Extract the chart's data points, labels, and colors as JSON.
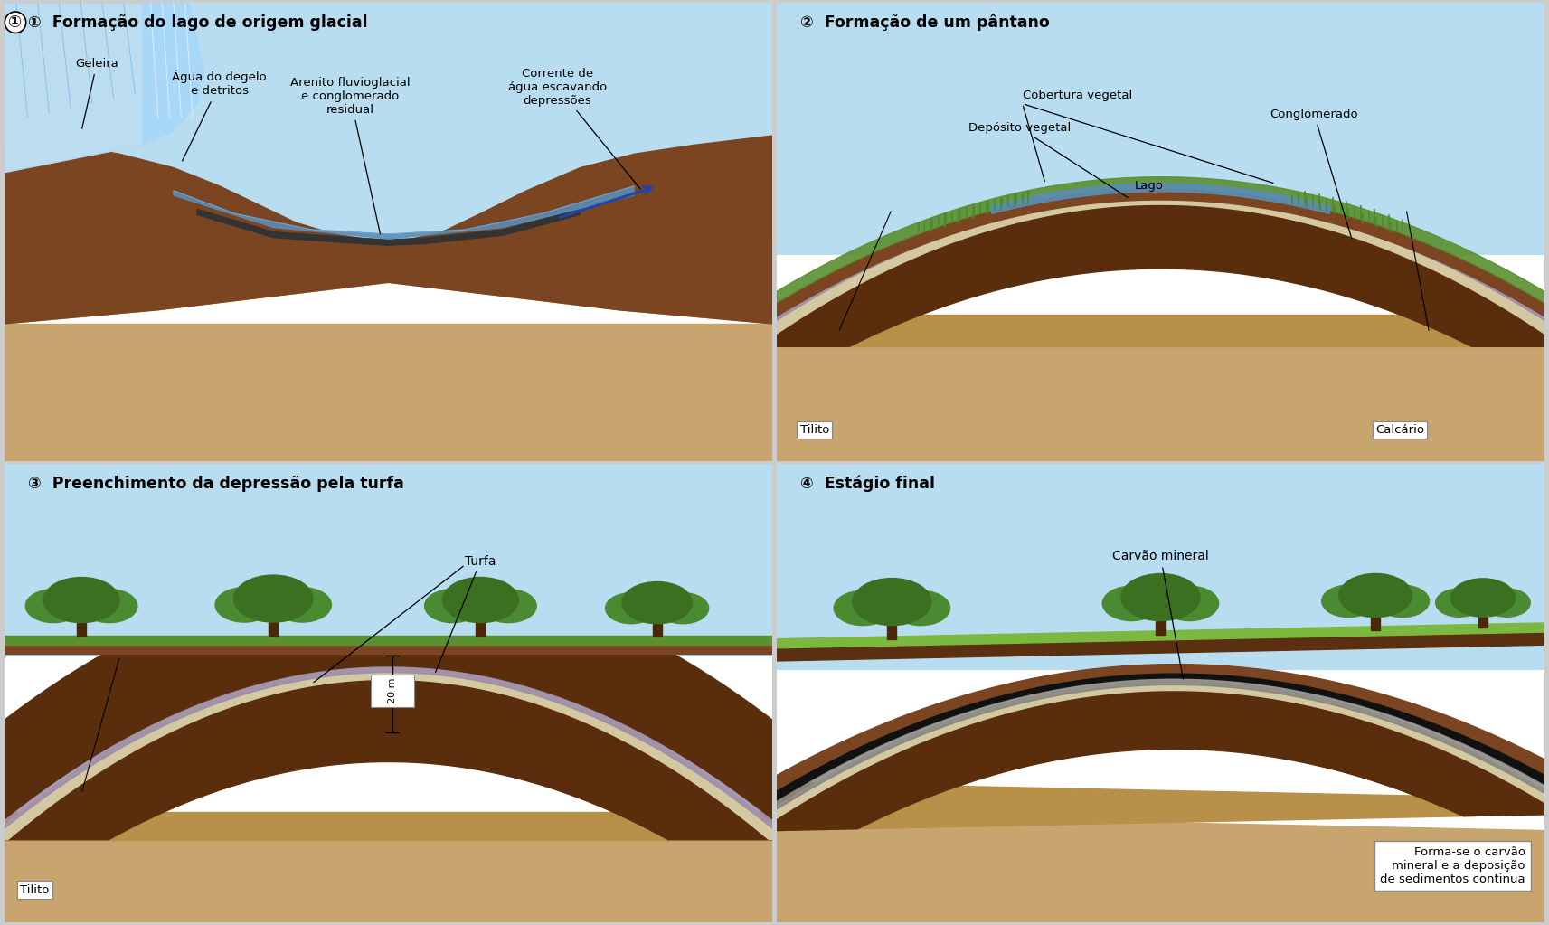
{
  "title1": "Formação do lago de origem glacial",
  "title2": "Formação de um pântano",
  "title3": "Preenchimento da depressão pela turfa",
  "title4": "Estágio final",
  "label1_geleira": "Geleira",
  "label1_agua": "Água do degelo\ne detritos",
  "label1_arenito": "Arenito fluvioglacial\ne conglomerado\nresidual",
  "label1_corrente": "Corrente de\nágua escavando\ndepressões",
  "label2_cobertura": "Cobertura vegetal",
  "label2_deposito": "Depósito vegetal",
  "label2_lago": "Lago",
  "label2_conglomerado": "Conglomerado",
  "label2_tilito": "Tilito",
  "label2_calcario": "Calcário",
  "label3_turfa": "Turfa",
  "label3_tilito": "Tilito",
  "label3_20m": "20 m",
  "label4_carvao": "Carvão mineral",
  "label4_box": "Forma-se o carvão\nmineral e a deposição\nde sedimentos continua",
  "sky_top": "#8ecae6",
  "sky_bottom": "#b8ddf0",
  "light_tan": "#c8a46e",
  "medium_tan": "#b8904a",
  "dark_brown": "#7a4520",
  "darker_brown": "#5a2d0c",
  "darkest_brown": "#3d1e08",
  "beige_layer": "#d4c8a0",
  "purple_layer": "#9b8aaa",
  "gray_layer": "#808080",
  "coal_black": "#111111",
  "water_blue": "#5b8db8",
  "glacier_white": "#d0eaf8",
  "glacier_blue": "#90c0e0",
  "green_dark": "#3a7020",
  "green_mid": "#4a8a30",
  "green_light": "#6aaa40",
  "green_grass": "#5a9030",
  "trunk_brown": "#4a2808",
  "border_gray": "#777777",
  "panel_bg": "#f5f0e8",
  "arrow_blue": "#2244aa"
}
